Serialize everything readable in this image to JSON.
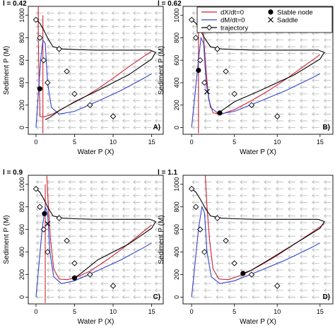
{
  "chart_data": [
    {
      "type": "line",
      "title": "l = 0.42",
      "panel_label": "A)",
      "xlabel": "Water P (X)",
      "ylabel": "Sediment P (M)",
      "xlim": [
        -1,
        16.5
      ],
      "ylim": [
        -60,
        1080
      ],
      "xticks": [
        0,
        5,
        10,
        15
      ],
      "yticks": [
        0,
        200,
        400,
        600,
        800,
        1000
      ],
      "grid_vector_field": true,
      "series": [
        {
          "name": "dX/dt=0",
          "color": "#cc2233",
          "x": [
            0.3,
            0.3,
            0.4,
            0.5,
            0.5,
            1.0,
            2.0,
            4.0,
            6.0,
            8.0,
            10.0,
            12.0,
            14.0,
            15.0
          ],
          "y": [
            1080,
            800,
            400,
            200,
            100,
            95,
            115,
            190,
            260,
            345,
            440,
            540,
            635,
            680
          ]
        },
        {
          "name": "dX/dt=0",
          "color": "#cc2233",
          "x": [
            0.9,
            0.9,
            0.9,
            0.9
          ],
          "y": [
            1000,
            600,
            200,
            -50
          ]
        },
        {
          "name": "dM/dt=0",
          "color": "#3344cc",
          "x": [
            0.0,
            0.3,
            0.6,
            0.9,
            1.2,
            1.5,
            2.0,
            3.0,
            5.0,
            8.0,
            11.0,
            14.0,
            15.0
          ],
          "y": [
            0,
            300,
            600,
            780,
            750,
            400,
            180,
            120,
            145,
            235,
            330,
            440,
            480
          ]
        },
        {
          "name": "trajectory",
          "color": "#000000",
          "x": [
            0.0,
            0.5,
            1.0,
            1.5,
            2.2,
            3.5,
            5.0,
            7.5,
            10.0,
            12.5,
            14.8,
            15.5,
            15.0,
            12.0,
            8.0,
            5.0,
            3.0,
            2.0,
            1.5,
            1.2
          ],
          "y": [
            960,
            930,
            870,
            800,
            720,
            700,
            695,
            690,
            690,
            690,
            690,
            670,
            610,
            470,
            330,
            230,
            150,
            100,
            80,
            70
          ]
        }
      ],
      "start_points": {
        "x": [
          0,
          0.5,
          1,
          1.5,
          3,
          4,
          5,
          7,
          10
        ],
        "y": [
          960,
          800,
          600,
          400,
          700,
          500,
          300,
          200,
          100
        ]
      },
      "stable_nodes": {
        "x": [
          0.5
        ],
        "y": [
          345
        ]
      },
      "saddles": {
        "x": [],
        "y": []
      }
    },
    {
      "type": "line",
      "title": "l = 0.62",
      "panel_label": "B)",
      "xlabel": "Water P (X)",
      "ylabel": "Sediment P (M)",
      "xlim": [
        -1,
        16.5
      ],
      "ylim": [
        -60,
        1080
      ],
      "xticks": [
        0,
        5,
        10,
        15
      ],
      "yticks": [
        0,
        200,
        400,
        600,
        800,
        1000
      ],
      "grid_vector_field": true,
      "legend": {
        "placement": "top-right",
        "entries": [
          {
            "label": "dX/dt=0",
            "kind": "line",
            "color": "#cc2233"
          },
          {
            "label": "dM/dt=0",
            "kind": "line",
            "color": "#3344cc"
          },
          {
            "label": "trajectory",
            "kind": "line-diamond",
            "color": "#000000"
          },
          {
            "label": "Stable node",
            "kind": "dot",
            "color": "#000000"
          },
          {
            "label": "Saddle",
            "kind": "cross",
            "color": "#000000"
          }
        ]
      },
      "series": [
        {
          "name": "dX/dt=0",
          "color": "#cc2233",
          "x": [
            1.2,
            1.4,
            1.7,
            2.0,
            2.5,
            3.5,
            5.0,
            7.0,
            9.0,
            11.0,
            13.0,
            15.0
          ],
          "y": [
            1080,
            800,
            500,
            250,
            130,
            120,
            160,
            240,
            330,
            430,
            540,
            650
          ]
        },
        {
          "name": "dX/dt=0",
          "color": "#cc2233",
          "x": [
            0.8,
            0.8,
            0.8,
            0.8
          ],
          "y": [
            1000,
            600,
            200,
            -50
          ]
        },
        {
          "name": "dM/dt=0",
          "color": "#3344cc",
          "x": [
            0.0,
            0.4,
            0.8,
            1.1,
            1.4,
            1.7,
            2.2,
            3.2,
            5.0,
            8.0,
            11.0,
            14.0,
            15.0
          ],
          "y": [
            0,
            300,
            600,
            800,
            750,
            400,
            180,
            120,
            145,
            235,
            330,
            440,
            480
          ]
        },
        {
          "name": "trajectory",
          "color": "#000000",
          "x": [
            0.0,
            0.5,
            1.0,
            1.5,
            2.2,
            3.5,
            5.0,
            7.5,
            10.0,
            12.5,
            14.8,
            15.5,
            15.0,
            12.0,
            8.0,
            5.0,
            3.5,
            3.0
          ],
          "y": [
            960,
            930,
            870,
            800,
            720,
            700,
            695,
            690,
            690,
            690,
            690,
            670,
            610,
            470,
            330,
            230,
            150,
            130
          ]
        }
      ],
      "start_points": {
        "x": [
          0,
          0.5,
          1,
          1.5,
          3,
          4,
          5,
          7,
          10
        ],
        "y": [
          960,
          800,
          600,
          400,
          700,
          500,
          300,
          200,
          100
        ]
      },
      "stable_nodes": {
        "x": [
          0.8,
          3.3
        ],
        "y": [
          510,
          130
        ]
      },
      "saddles": {
        "x": [
          1.8
        ],
        "y": [
          320
        ]
      }
    },
    {
      "type": "line",
      "title": "l = 0.9",
      "panel_label": "C)",
      "xlabel": "Water P (X)",
      "ylabel": "Sediment P (M)",
      "xlim": [
        -1,
        16.5
      ],
      "ylim": [
        -60,
        1080
      ],
      "xticks": [
        0,
        5,
        10,
        15
      ],
      "yticks": [
        0,
        200,
        400,
        600,
        800,
        1000
      ],
      "grid_vector_field": true,
      "series": [
        {
          "name": "dX/dt=0",
          "color": "#cc2233",
          "x": [
            1.4,
            1.6,
            1.9,
            2.3,
            3.0,
            4.0,
            5.0,
            7.0,
            9.0,
            11.0,
            13.0,
            15.0
          ],
          "y": [
            1080,
            800,
            500,
            250,
            160,
            155,
            170,
            230,
            320,
            420,
            530,
            640
          ]
        },
        {
          "name": "dX/dt=0",
          "color": "#cc2233",
          "x": [
            1.2,
            1.2,
            1.2,
            1.2
          ],
          "y": [
            1000,
            600,
            200,
            -50
          ]
        },
        {
          "name": "dM/dt=0",
          "color": "#3344cc",
          "x": [
            0.0,
            0.4,
            0.8,
            1.2,
            1.5,
            1.8,
            2.3,
            3.3,
            5.0,
            8.0,
            11.0,
            14.0,
            15.0
          ],
          "y": [
            0,
            300,
            600,
            800,
            750,
            400,
            180,
            120,
            145,
            235,
            330,
            440,
            480
          ]
        },
        {
          "name": "trajectory",
          "color": "#000000",
          "x": [
            0.0,
            0.5,
            1.0,
            1.5,
            2.2,
            3.5,
            5.0,
            7.5,
            10.0,
            12.5,
            14.8,
            15.5,
            15.0,
            12.0,
            8.0,
            6.0,
            5.0
          ],
          "y": [
            960,
            930,
            870,
            800,
            720,
            700,
            695,
            690,
            690,
            690,
            690,
            670,
            610,
            470,
            330,
            220,
            170
          ]
        }
      ],
      "start_points": {
        "x": [
          0,
          0.5,
          1,
          1.5,
          3,
          4,
          5,
          7,
          10
        ],
        "y": [
          960,
          800,
          600,
          400,
          700,
          500,
          300,
          200,
          100
        ]
      },
      "stable_nodes": {
        "x": [
          1.1,
          5.0
        ],
        "y": [
          740,
          170
        ]
      },
      "saddles": {
        "x": [
          1.5
        ],
        "y": [
          650
        ]
      }
    },
    {
      "type": "line",
      "title": "l = 1.1",
      "panel_label": "D)",
      "xlabel": "Water P (X)",
      "ylabel": "Sediment P (M)",
      "xlim": [
        -1,
        16.5
      ],
      "ylim": [
        -60,
        1080
      ],
      "xticks": [
        0,
        5,
        10,
        15
      ],
      "yticks": [
        0,
        200,
        400,
        600,
        800,
        1000
      ],
      "grid_vector_field": true,
      "series": [
        {
          "name": "dX/dt=0",
          "color": "#cc2233",
          "x": [
            1.6,
            1.8,
            2.1,
            2.5,
            3.2,
            4.3,
            6.0,
            8.0,
            10.0,
            12.0,
            14.0,
            15.5
          ],
          "y": [
            1080,
            800,
            500,
            250,
            160,
            155,
            200,
            280,
            370,
            470,
            570,
            650
          ]
        },
        {
          "name": "dM/dt=0",
          "color": "#3344cc",
          "x": [
            0.0,
            0.4,
            0.8,
            1.2,
            1.5,
            1.8,
            2.3,
            3.3,
            5.0,
            8.0,
            11.0,
            14.0,
            15.0
          ],
          "y": [
            0,
            300,
            600,
            800,
            750,
            400,
            180,
            120,
            145,
            235,
            330,
            440,
            480
          ]
        },
        {
          "name": "trajectory",
          "color": "#000000",
          "x": [
            0.0,
            0.5,
            1.0,
            1.5,
            2.2,
            3.5,
            5.0,
            7.5,
            10.0,
            12.5,
            14.8,
            15.5,
            15.0,
            12.0,
            9.0,
            7.0,
            6.0
          ],
          "y": [
            960,
            930,
            870,
            800,
            720,
            700,
            695,
            690,
            690,
            690,
            690,
            670,
            610,
            470,
            330,
            240,
            210
          ]
        }
      ],
      "start_points": {
        "x": [
          0,
          0.5,
          1,
          1.5,
          3,
          4,
          5,
          7,
          10
        ],
        "y": [
          960,
          800,
          600,
          400,
          700,
          500,
          300,
          200,
          100
        ]
      },
      "stable_nodes": {
        "x": [
          6.0
        ],
        "y": [
          210
        ]
      },
      "saddles": {
        "x": [],
        "y": []
      }
    }
  ]
}
